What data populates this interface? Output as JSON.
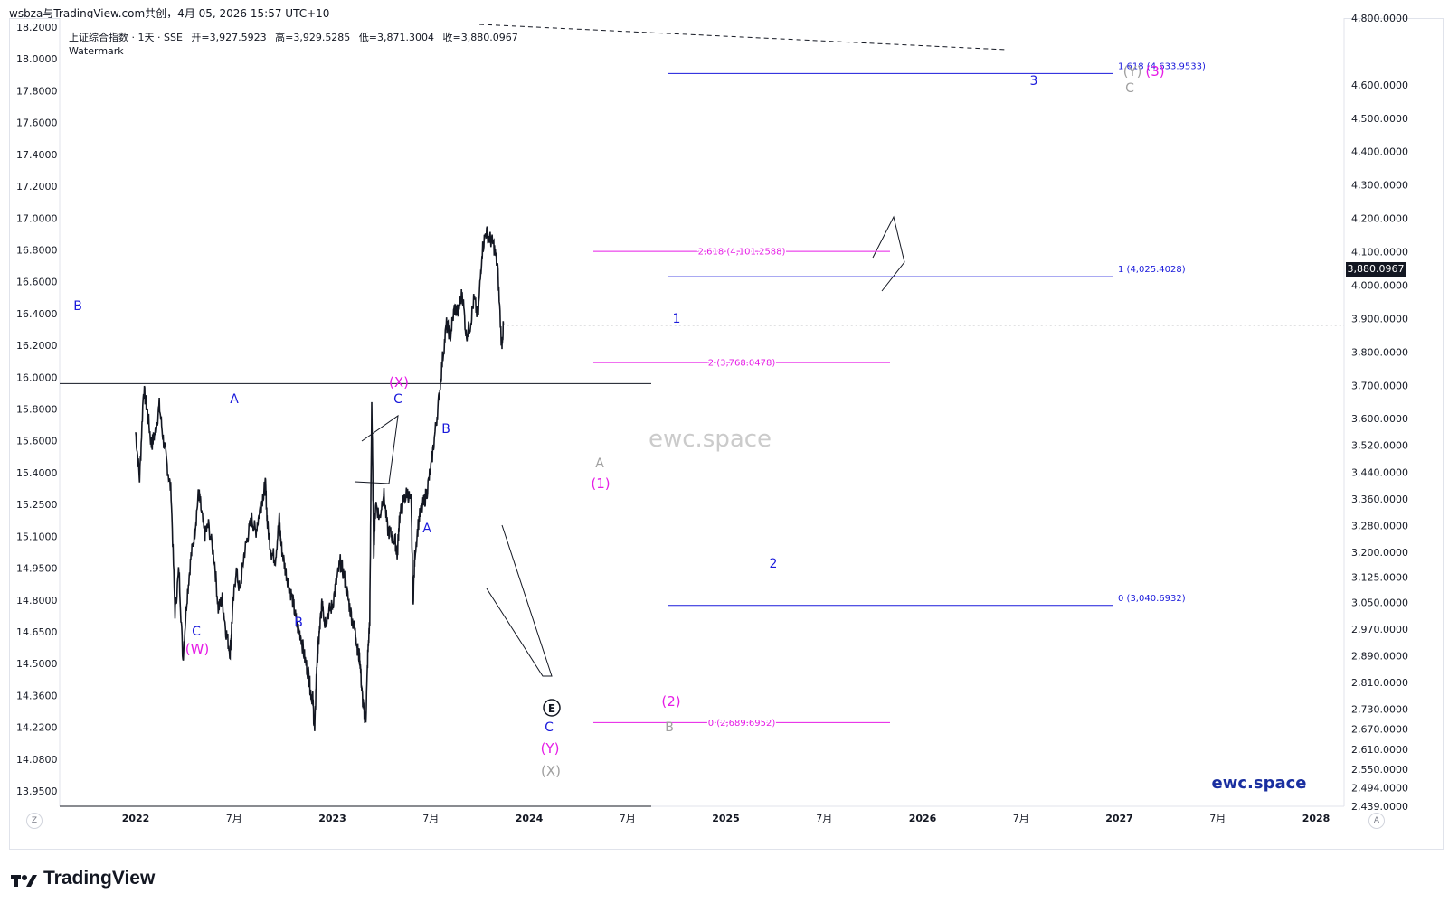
{
  "header": {
    "title": "wsbza与TradingView.com共创，4月 05, 2026 15:57 UTC+10"
  },
  "legend": {
    "symbol": "上证综合指数 · 1天 · SSE",
    "open": "开=3,927.5923",
    "high": "高=3,929.5285",
    "low": "低=3,871.3004",
    "close": "收=3,880.0967",
    "watermark_label": "Watermark"
  },
  "price_tag": "3,880.0967",
  "watermark_center": "ewc.space",
  "watermark_brand": "ewc.space",
  "footer": {
    "logo": "TradingView"
  },
  "corner": {
    "left": "Z",
    "right": "A"
  },
  "colors": {
    "candles": "#131722",
    "blue": "#1a1adb",
    "magenta": "#e61ce6",
    "gray": "#a0a0a0"
  },
  "chart_data": {
    "type": "line",
    "x_ticks": [
      "2022",
      "7月",
      "2023",
      "7月",
      "2024",
      "7月",
      "2025",
      "7月",
      "2026",
      "7月",
      "2027",
      "7月",
      "2028"
    ],
    "left_axis_ticks": [
      "18.2000",
      "18.0000",
      "17.8000",
      "17.6000",
      "17.4000",
      "17.2000",
      "17.0000",
      "16.8000",
      "16.6000",
      "16.4000",
      "16.2000",
      "16.0000",
      "15.8000",
      "15.6000",
      "15.4000",
      "15.2500",
      "15.1000",
      "14.9500",
      "14.8000",
      "14.6500",
      "14.5000",
      "14.3600",
      "14.2200",
      "14.0800",
      "13.9500"
    ],
    "right_axis_ticks": [
      "4,800.0000",
      "4,600.0000",
      "4,500.0000",
      "4,400.0000",
      "4,300.0000",
      "4,200.0000",
      "4,100.0000",
      "4,000.0000",
      "3,900.0000",
      "3,800.0000",
      "3,700.0000",
      "3,600.0000",
      "3,520.0000",
      "3,440.0000",
      "3,360.0000",
      "3,280.0000",
      "3,200.0000",
      "3,125.0000",
      "3,050.0000",
      "2,970.0000",
      "2,890.0000",
      "2,810.0000",
      "2,730.0000",
      "2,670.0000",
      "2,610.0000",
      "2,550.0000",
      "2,494.0000",
      "2,439.0000"
    ],
    "series": [
      {
        "values": [
          [
            0,
            3560
          ],
          [
            0.02,
            3420
          ],
          [
            0.04,
            3690
          ],
          [
            0.06,
            3620
          ],
          [
            0.08,
            3520
          ],
          [
            0.1,
            3560
          ],
          [
            0.12,
            3640
          ],
          [
            0.14,
            3540
          ],
          [
            0.16,
            3460
          ],
          [
            0.18,
            3380
          ],
          [
            0.2,
            3020
          ],
          [
            0.22,
            3150
          ],
          [
            0.24,
            2880
          ],
          [
            0.26,
            3060
          ],
          [
            0.28,
            3180
          ],
          [
            0.3,
            3260
          ],
          [
            0.32,
            3380
          ],
          [
            0.33,
            3340
          ],
          [
            0.35,
            3250
          ],
          [
            0.37,
            3280
          ],
          [
            0.4,
            3180
          ],
          [
            0.42,
            3030
          ],
          [
            0.44,
            3060
          ],
          [
            0.46,
            2960
          ],
          [
            0.48,
            2900
          ],
          [
            0.49,
            3000
          ],
          [
            0.51,
            3150
          ],
          [
            0.53,
            3080
          ],
          [
            0.55,
            3190
          ],
          [
            0.57,
            3250
          ],
          [
            0.59,
            3300
          ],
          [
            0.61,
            3260
          ],
          [
            0.63,
            3320
          ],
          [
            0.65,
            3380
          ],
          [
            0.66,
            3400
          ],
          [
            0.67,
            3280
          ],
          [
            0.69,
            3200
          ],
          [
            0.71,
            3180
          ],
          [
            0.73,
            3300
          ],
          [
            0.74,
            3220
          ],
          [
            0.76,
            3150
          ],
          [
            0.78,
            3100
          ],
          [
            0.8,
            3050
          ],
          [
            0.82,
            2980
          ],
          [
            0.84,
            2950
          ],
          [
            0.86,
            2880
          ],
          [
            0.88,
            2830
          ],
          [
            0.89,
            2780
          ],
          [
            0.9,
            2760
          ],
          [
            0.91,
            2660
          ],
          [
            0.92,
            2860
          ],
          [
            0.93,
            2930
          ],
          [
            0.94,
            3000
          ],
          [
            0.95,
            3060
          ],
          [
            0.96,
            2990
          ],
          [
            0.98,
            3020
          ],
          [
            1.0,
            3040
          ],
          [
            1.02,
            3110
          ],
          [
            1.04,
            3170
          ],
          [
            1.06,
            3130
          ],
          [
            1.08,
            3060
          ],
          [
            1.1,
            3000
          ],
          [
            1.12,
            2950
          ],
          [
            1.13,
            2900
          ],
          [
            1.14,
            2880
          ],
          [
            1.15,
            2780
          ],
          [
            1.16,
            2720
          ],
          [
            1.17,
            2700
          ],
          [
            1.18,
            2890
          ],
          [
            1.19,
            3000
          ],
          [
            1.2,
            3650
          ],
          [
            1.21,
            3200
          ],
          [
            1.22,
            3350
          ],
          [
            1.24,
            3300
          ],
          [
            1.26,
            3380
          ],
          [
            1.28,
            3270
          ],
          [
            1.3,
            3250
          ],
          [
            1.32,
            3230
          ],
          [
            1.33,
            3190
          ],
          [
            1.34,
            3300
          ],
          [
            1.36,
            3350
          ],
          [
            1.38,
            3380
          ],
          [
            1.4,
            3350
          ],
          [
            1.41,
            3050
          ],
          [
            1.42,
            3200
          ],
          [
            1.44,
            3300
          ],
          [
            1.46,
            3340
          ],
          [
            1.48,
            3380
          ],
          [
            1.5,
            3450
          ],
          [
            1.52,
            3550
          ],
          [
            1.54,
            3650
          ],
          [
            1.56,
            3780
          ],
          [
            1.58,
            3880
          ],
          [
            1.6,
            3850
          ],
          [
            1.62,
            3930
          ],
          [
            1.64,
            3920
          ],
          [
            1.66,
            3980
          ],
          [
            1.68,
            3850
          ],
          [
            1.7,
            3880
          ],
          [
            1.72,
            3960
          ],
          [
            1.74,
            3900
          ],
          [
            1.76,
            4100
          ],
          [
            1.78,
            4160
          ],
          [
            1.8,
            4140
          ],
          [
            1.82,
            4120
          ],
          [
            1.84,
            4050
          ],
          [
            1.86,
            3820
          ],
          [
            1.87,
            3880
          ]
        ]
      }
    ],
    "annotations": [
      {
        "text": "B",
        "color": "blue"
      },
      {
        "text": "C",
        "color": "blue"
      },
      {
        "text": "(W)",
        "color": "magenta"
      },
      {
        "text": "A",
        "color": "blue"
      },
      {
        "text": "B",
        "color": "blue"
      },
      {
        "text": "(X)",
        "color": "magenta"
      },
      {
        "text": "C",
        "color": "blue"
      },
      {
        "text": "B",
        "color": "blue"
      },
      {
        "text": "A",
        "color": "blue"
      },
      {
        "text": "C",
        "color": "blue"
      },
      {
        "text": "(Y)",
        "color": "magenta"
      },
      {
        "text": "(X)",
        "color": "gray"
      },
      {
        "text": "A",
        "color": "gray"
      },
      {
        "text": "(1)",
        "color": "magenta"
      },
      {
        "text": "(2)",
        "color": "magenta"
      },
      {
        "text": "B",
        "color": "gray"
      },
      {
        "text": "1",
        "color": "blue"
      },
      {
        "text": "2",
        "color": "blue"
      },
      {
        "text": "3",
        "color": "blue"
      },
      {
        "text": "(Y)",
        "color": "gray"
      },
      {
        "text": "(3)",
        "color": "magenta"
      },
      {
        "text": "C",
        "color": "gray"
      }
    ],
    "fib_levels": [
      {
        "label": "1.618 (4,633.9533)",
        "value": 4633.9533,
        "color": "blue"
      },
      {
        "label": "1 (4,025.4028)",
        "value": 4025.4028,
        "color": "blue"
      },
      {
        "label": "0 (3,040.6932)",
        "value": 3040.6932,
        "color": "blue"
      },
      {
        "label": "2.618 (4,101.2588)",
        "value": 4101.2588,
        "color": "magenta"
      },
      {
        "label": "2 (3,768.0478)",
        "value": 3768.0478,
        "color": "magenta"
      },
      {
        "label": "0 (2,689.6952)",
        "value": 2689.6952,
        "color": "magenta"
      }
    ],
    "circle_marker": "E"
  }
}
